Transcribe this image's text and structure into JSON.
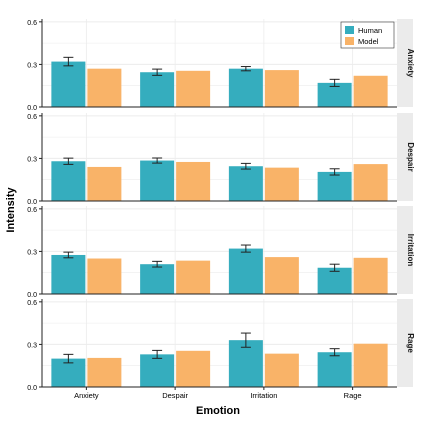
{
  "chart_data": {
    "type": "bar",
    "xlabel": "Emotion",
    "ylabel": "Intensity",
    "categories": [
      "Anxiety",
      "Despair",
      "Irritation",
      "Rage"
    ],
    "ylim": [
      0,
      0.62
    ],
    "yticks": [
      "0.0",
      "0.3",
      "0.6"
    ],
    "legend": {
      "position": "top-right",
      "entries": [
        "Human",
        "Model"
      ]
    },
    "colors": {
      "Human": "#35adbe",
      "Model": "#f9b368",
      "strip": "#ebebeb",
      "grid": "#ececec"
    },
    "panels": [
      {
        "label": "Anxiety",
        "series": [
          {
            "name": "Human",
            "values": [
              0.32,
              0.245,
              0.27,
              0.17
            ],
            "errors": [
              0.03,
              0.022,
              0.015,
              0.025
            ]
          },
          {
            "name": "Model",
            "values": [
              0.27,
              0.255,
              0.26,
              0.22
            ]
          }
        ]
      },
      {
        "label": "Despair",
        "series": [
          {
            "name": "Human",
            "values": [
              0.28,
              0.285,
              0.245,
              0.205
            ],
            "errors": [
              0.022,
              0.018,
              0.02,
              0.022
            ]
          },
          {
            "name": "Model",
            "values": [
              0.24,
              0.275,
              0.235,
              0.26
            ]
          }
        ]
      },
      {
        "label": "Irritation",
        "series": [
          {
            "name": "Human",
            "values": [
              0.275,
              0.21,
              0.32,
              0.185
            ],
            "errors": [
              0.02,
              0.02,
              0.025,
              0.025
            ]
          },
          {
            "name": "Model",
            "values": [
              0.25,
              0.235,
              0.26,
              0.255
            ]
          }
        ]
      },
      {
        "label": "Rage",
        "series": [
          {
            "name": "Human",
            "values": [
              0.2,
              0.23,
              0.33,
              0.245
            ],
            "errors": [
              0.03,
              0.028,
              0.05,
              0.025
            ]
          },
          {
            "name": "Model",
            "values": [
              0.205,
              0.255,
              0.235,
              0.305
            ]
          }
        ]
      }
    ]
  }
}
